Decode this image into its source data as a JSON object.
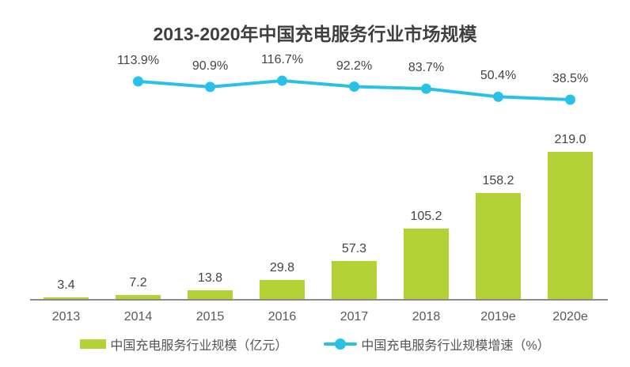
{
  "title": "2013-2020年中国充电服务行业市场规模",
  "colors": {
    "bar": "#b2d235",
    "line": "#29c1e8",
    "axis": "#8c8c8c",
    "title_text": "#3f3f3f",
    "label_text": "#444444"
  },
  "chart_data": {
    "type": "bar+line",
    "title": "2013-2020年中国充电服务行业市场规模",
    "categories": [
      "2013",
      "2014",
      "2015",
      "2016",
      "2017",
      "2018",
      "2019e",
      "2020e"
    ],
    "series": [
      {
        "name": "中国充电服务行业规模（亿元）",
        "type": "bar",
        "unit": "亿元",
        "values": [
          3.4,
          7.2,
          13.8,
          29.8,
          57.3,
          105.2,
          158.2,
          219.0
        ]
      },
      {
        "name": "中国充电服务行业规模增速（%）",
        "type": "line",
        "unit": "%",
        "categories": [
          "2014",
          "2015",
          "2016",
          "2017",
          "2018",
          "2019e",
          "2020e"
        ],
        "values": [
          113.9,
          90.9,
          116.7,
          92.2,
          83.7,
          50.4,
          38.5
        ]
      }
    ],
    "value_labels_shown": true,
    "y_axis_shown": false,
    "grid": false,
    "legend_position": "bottom"
  },
  "legend": {
    "items": [
      {
        "label": "中国充电服务行业规模（亿元）",
        "type": "bar"
      },
      {
        "label": "中国充电服务行业规模增速（%）",
        "type": "line"
      }
    ]
  }
}
